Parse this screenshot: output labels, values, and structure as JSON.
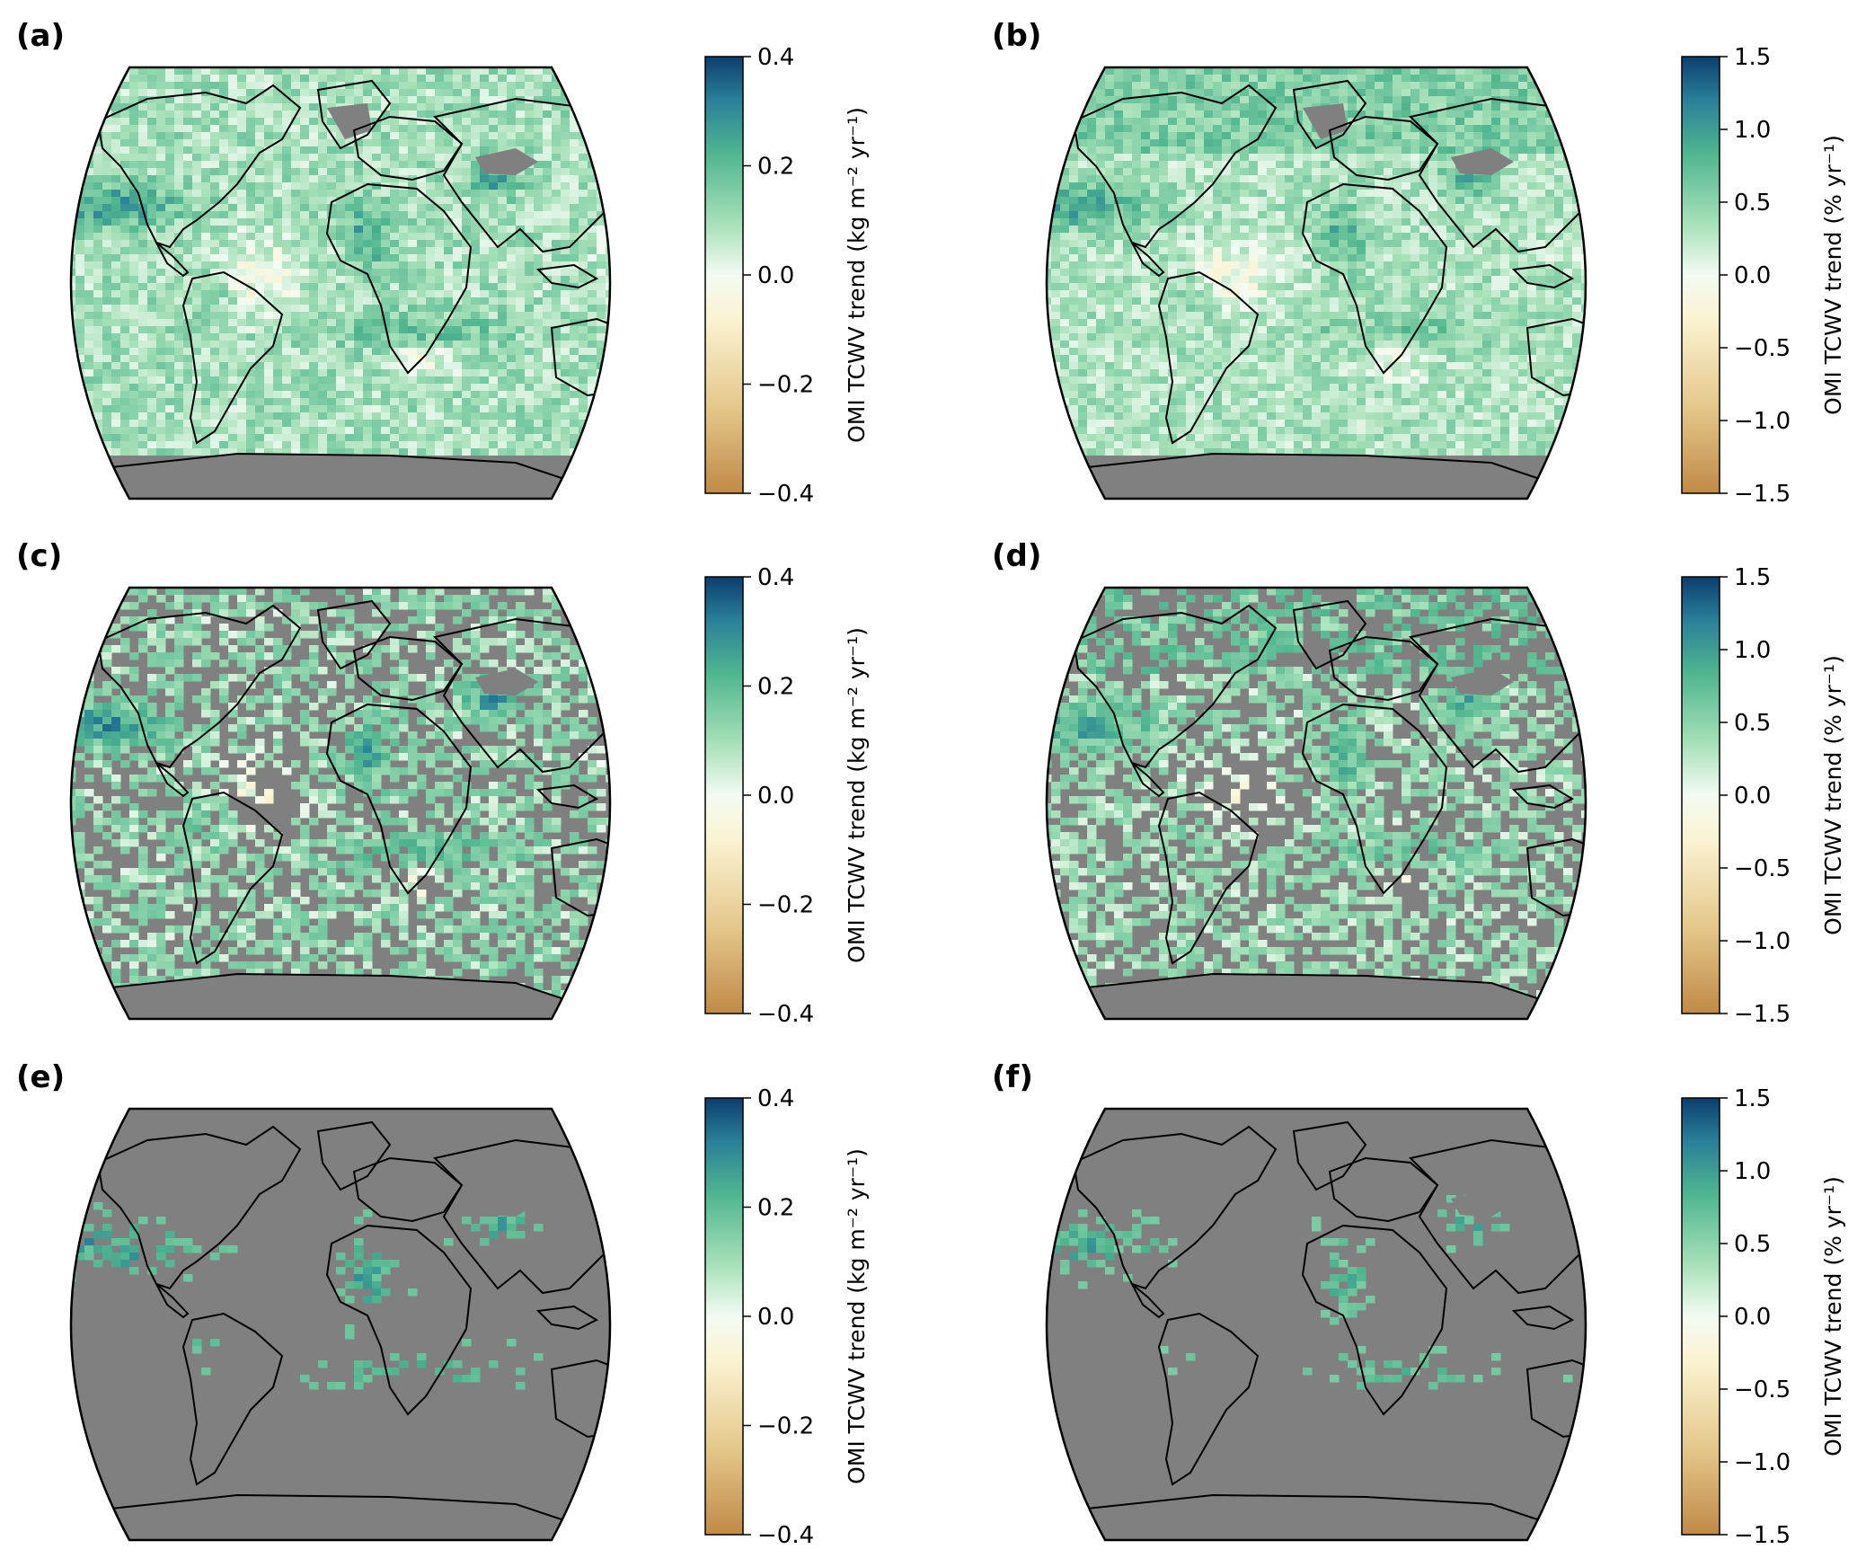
{
  "colors": {
    "background": "#ffffff",
    "no_data": "#808080",
    "coastline": "#000000",
    "colormap_stops": [
      "#c08a47",
      "#e5c88c",
      "#fbf3d2",
      "#f3fbf3",
      "#a6e0b8",
      "#4fb58f",
      "#2a8099",
      "#0c3e6e"
    ]
  },
  "panels": [
    {
      "letter": "(a)",
      "cb_label": "OMI TCWV trend (kg m⁻² yr⁻¹)",
      "ticks": [
        "0.4",
        "0.2",
        "0.0",
        "−0.2",
        "−0.4"
      ],
      "range": [
        -0.4,
        0.4
      ],
      "map": "full"
    },
    {
      "letter": "(b)",
      "cb_label": "OMI TCWV trend (% yr⁻¹)",
      "ticks": [
        "1.5",
        "1.0",
        "0.5",
        "0.0",
        "−0.5",
        "−1.0",
        "−1.5"
      ],
      "range": [
        -1.5,
        1.5
      ],
      "map": "full"
    },
    {
      "letter": "(c)",
      "cb_label": "OMI TCWV trend (kg m⁻² yr⁻¹)",
      "ticks": [
        "0.4",
        "0.2",
        "0.0",
        "−0.2",
        "−0.4"
      ],
      "range": [
        -0.4,
        0.4
      ],
      "map": "masked"
    },
    {
      "letter": "(d)",
      "cb_label": "OMI TCWV trend (% yr⁻¹)",
      "ticks": [
        "1.5",
        "1.0",
        "0.5",
        "0.0",
        "−0.5",
        "−1.0",
        "−1.5"
      ],
      "range": [
        -1.5,
        1.5
      ],
      "map": "masked"
    },
    {
      "letter": "(e)",
      "cb_label": "OMI TCWV trend (kg m⁻² yr⁻¹)",
      "ticks": [
        "0.4",
        "0.2",
        "0.0",
        "−0.2",
        "−0.4"
      ],
      "range": [
        -0.4,
        0.4
      ],
      "map": "sparse"
    },
    {
      "letter": "(f)",
      "cb_label": "OMI TCWV trend (% yr⁻¹)",
      "ticks": [
        "1.5",
        "1.0",
        "0.5",
        "0.0",
        "−0.5",
        "−1.0",
        "−1.5"
      ],
      "range": [
        -1.5,
        1.5
      ],
      "map": "sparse"
    }
  ]
}
